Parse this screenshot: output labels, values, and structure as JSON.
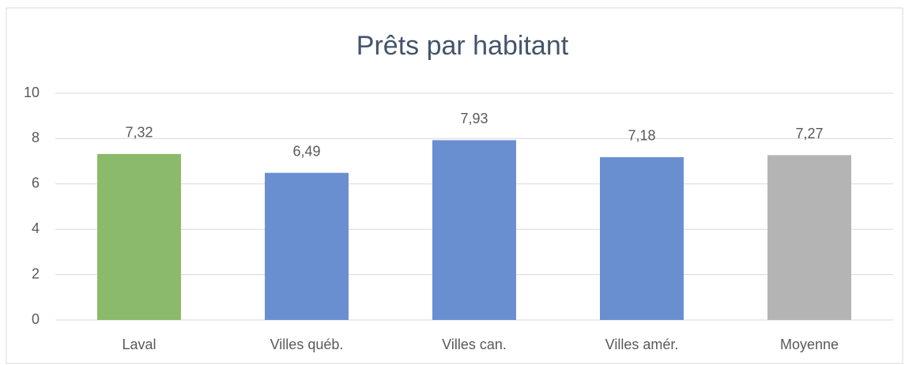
{
  "chart_data": {
    "type": "bar",
    "title": "Prêts par habitant",
    "categories": [
      "Laval",
      "Villes québ.",
      "Villes can.",
      "Villes amér.",
      "Moyenne"
    ],
    "values": [
      7.32,
      6.49,
      7.93,
      7.18,
      7.27
    ],
    "value_labels": [
      "7,32",
      "6,49",
      "7,93",
      "7,18",
      "7,27"
    ],
    "colors": [
      "#8bba6b",
      "#6a8fd1",
      "#6a8fd1",
      "#6a8fd1",
      "#b4b4b4"
    ],
    "ylim": [
      0,
      10
    ],
    "yticks": [
      0,
      2,
      4,
      6,
      8,
      10
    ],
    "grid": true
  }
}
